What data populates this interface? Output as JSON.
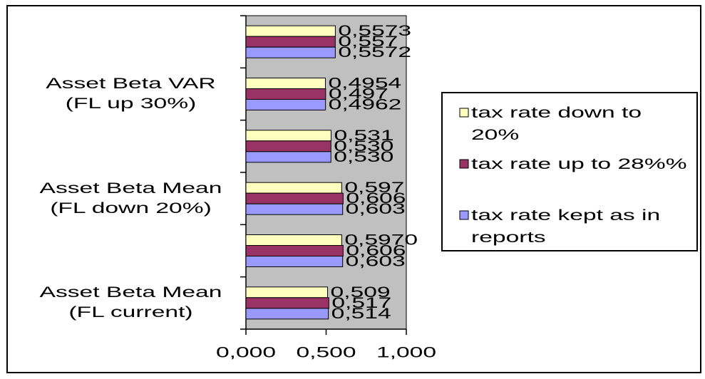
{
  "chart_data": {
    "type": "hbar",
    "categories": [
      "Asset Beta Mean (FL current)",
      null,
      "Asset Beta Mean (FL down 20%)",
      null,
      "Asset Beta VAR (FL up 30%)",
      null
    ],
    "series": [
      {
        "name": "tax rate down to 20%",
        "color": "#ffffc0",
        "values": [
          0.509,
          0.597,
          0.597,
          0.531,
          0.4954,
          0.5573
        ],
        "value_labels": [
          "0,509",
          "0,5970",
          "0,597",
          "0,531",
          "0,4954",
          "0,5573"
        ]
      },
      {
        "name": "tax rate up to 28%%",
        "color": "#993366",
        "values": [
          0.517,
          0.606,
          0.606,
          0.53,
          0.497,
          0.557
        ],
        "value_labels": [
          "0,517",
          "0,606",
          "0,606",
          "0,530",
          "0,497",
          "0,557"
        ]
      },
      {
        "name": "tax rate kept as in reports",
        "color": "#9999ff",
        "values": [
          0.514,
          0.603,
          0.603,
          0.53,
          0.4962,
          0.5572
        ],
        "value_labels": [
          "0,514",
          "0,603",
          "0,603",
          "0,530",
          "0,4962",
          "0,5572"
        ]
      }
    ],
    "xlim": [
      0,
      1
    ],
    "xticks": [
      {
        "value": 0,
        "label": "0,000"
      },
      {
        "value": 0.5,
        "label": "0,500"
      },
      {
        "value": 1,
        "label": "1,000"
      }
    ],
    "plot_background": "#c0c0c0"
  }
}
